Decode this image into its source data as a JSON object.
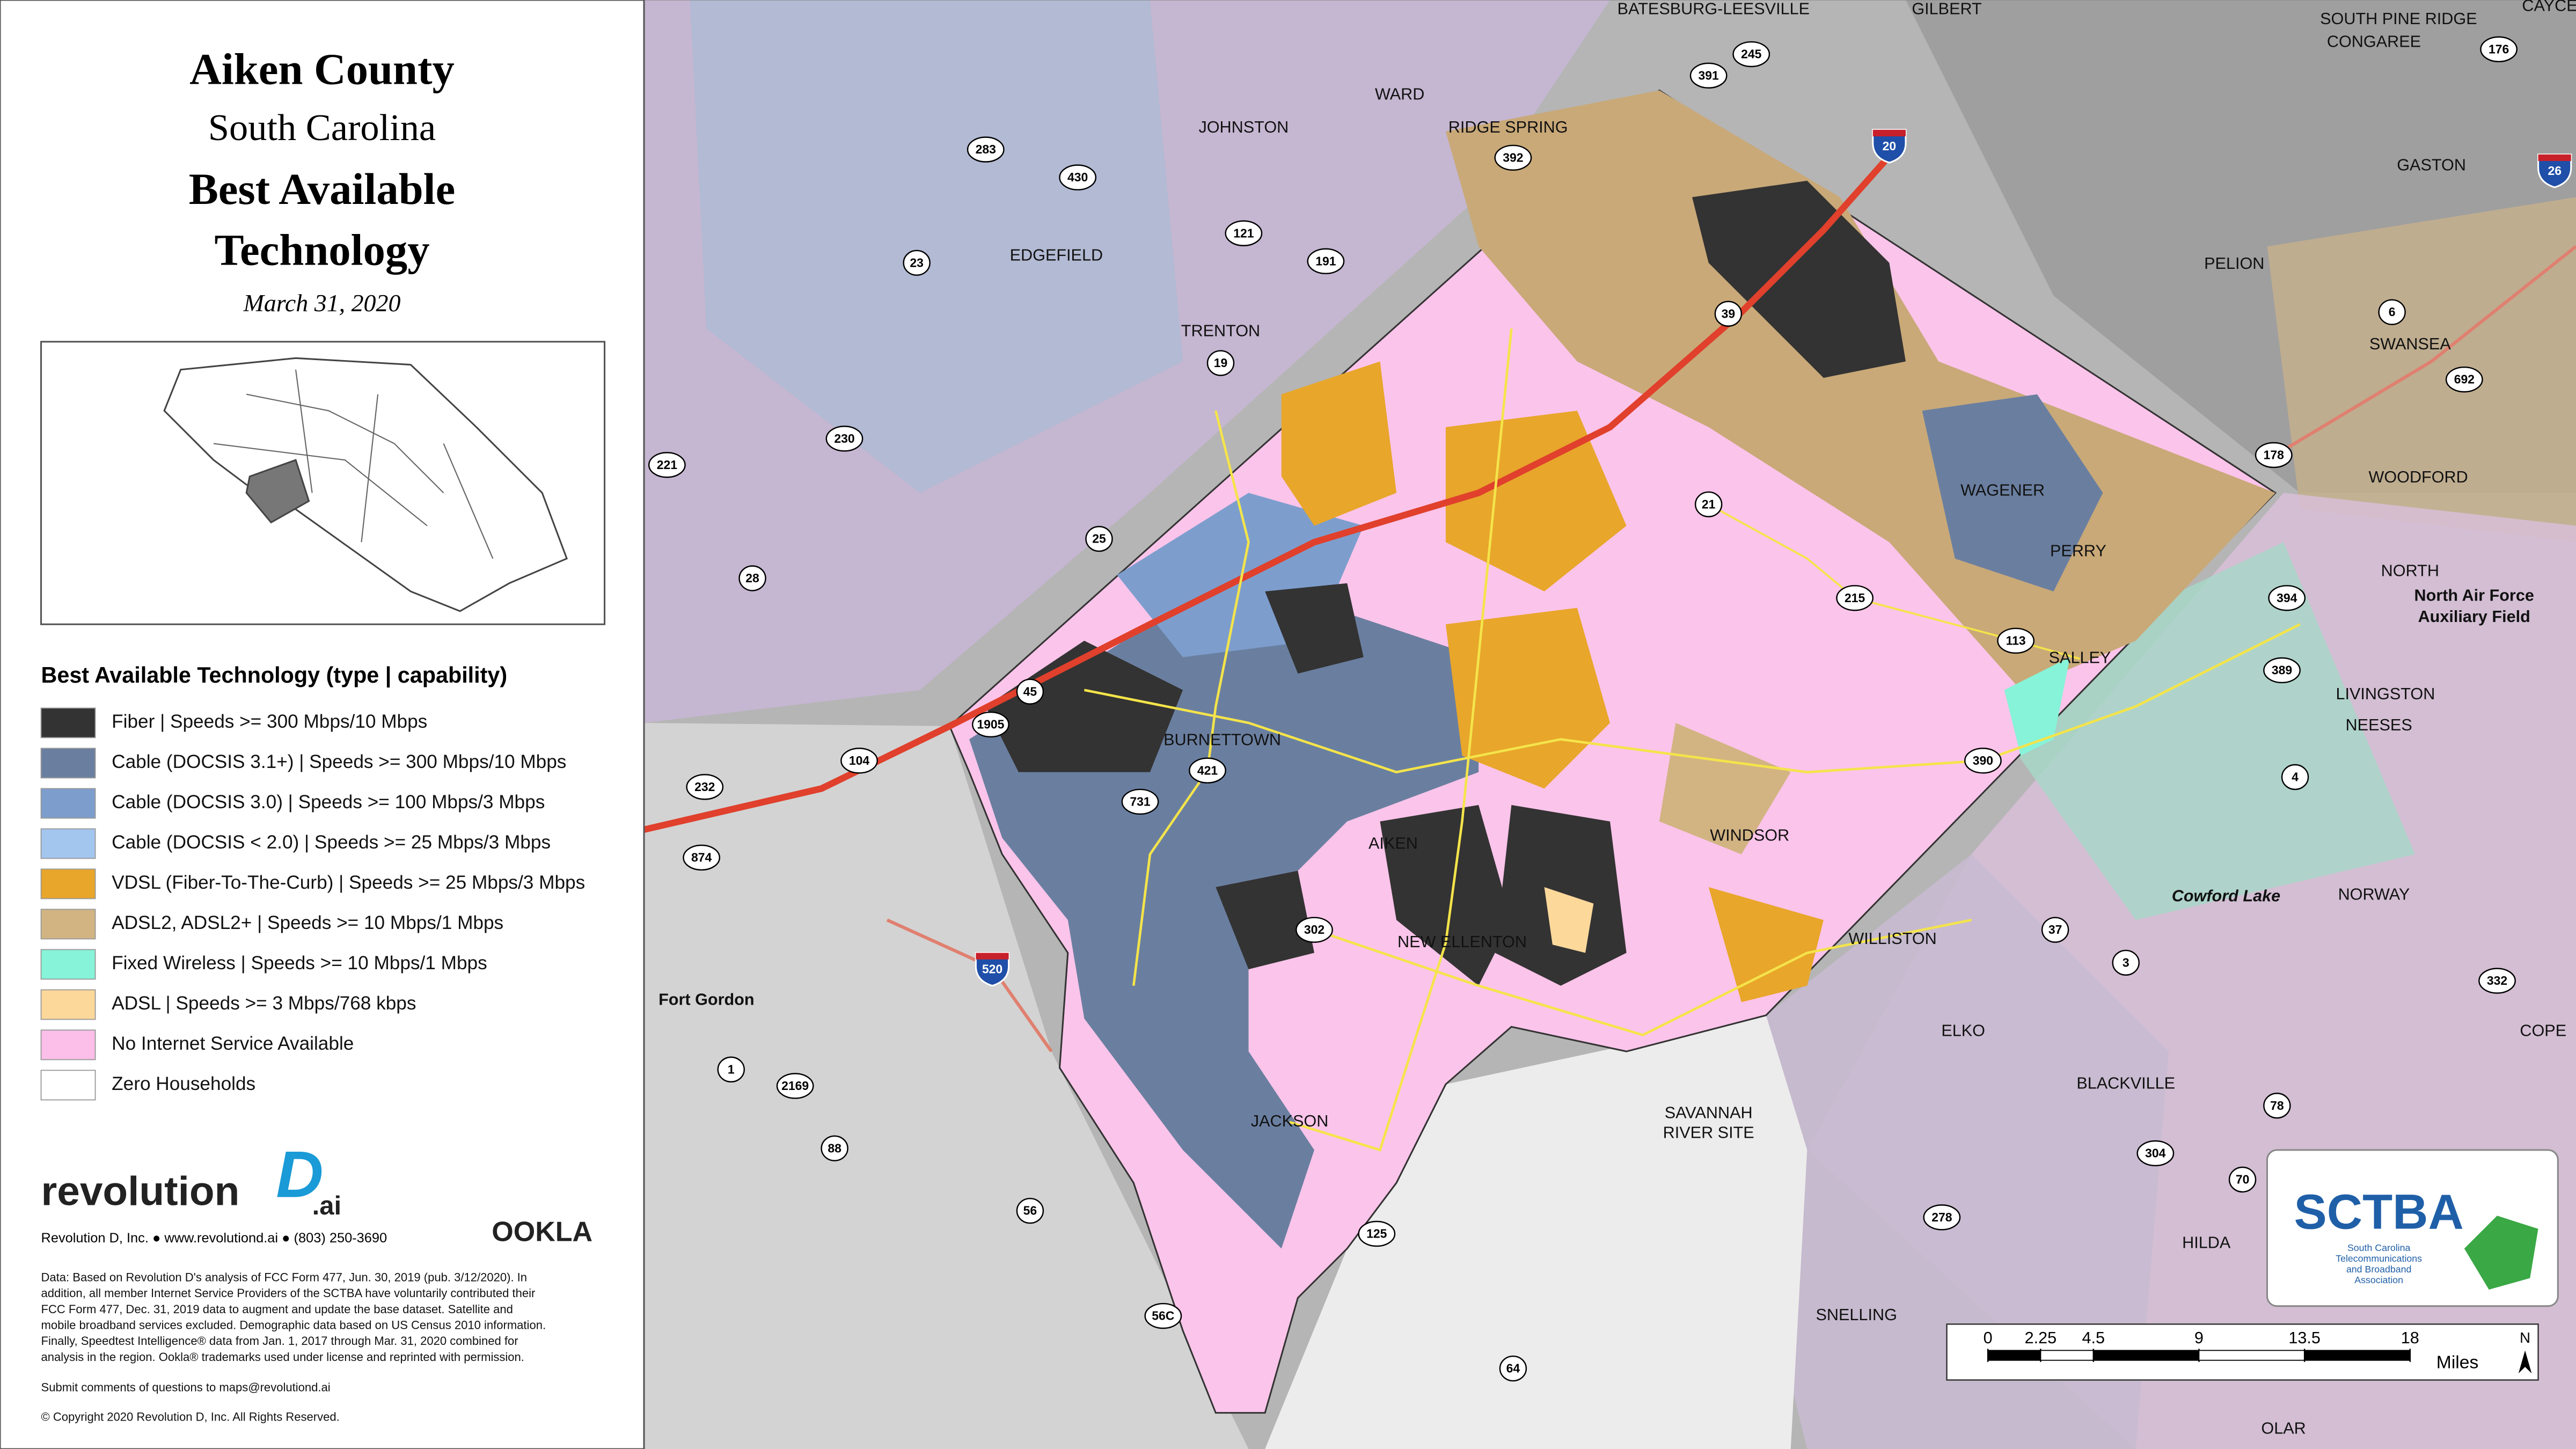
{
  "panel": {
    "title": "Aiken County",
    "subtitle": "South Carolina",
    "heading": [
      "Best Available",
      "Technology"
    ],
    "date": "March 31, 2020"
  },
  "legend": {
    "title": "Best Available Technology (type | capability)",
    "items": [
      {
        "label": "Fiber | Speeds >= 300 Mbps/10 Mbps",
        "color": "#333333"
      },
      {
        "label": "Cable (DOCSIS 3.1+) | Speeds >= 300 Mbps/10 Mbps",
        "color": "#6a7fa0"
      },
      {
        "label": "Cable (DOCSIS 3.0) | Speeds >= 100 Mbps/3 Mbps",
        "color": "#7d9ecd"
      },
      {
        "label": "Cable (DOCSIS < 2.0) | Speeds >= 25 Mbps/3 Mbps",
        "color": "#a3c6ef"
      },
      {
        "label": "VDSL (Fiber-To-The-Curb) | Speeds >= 25 Mbps/3 Mbps",
        "color": "#e8a62b"
      },
      {
        "label": "ADSL2, ADSL2+ | Speeds >= 10 Mbps/1 Mbps",
        "color": "#d2b483"
      },
      {
        "label": "Fixed Wireless | Speeds >= 10 Mbps/1 Mbps",
        "color": "#87f3d8"
      },
      {
        "label": "ADSL | Speeds >= 3 Mbps/768 kbps",
        "color": "#fdd89b"
      },
      {
        "label": "No Internet Service Available",
        "color": "#fbbfe9"
      },
      {
        "label": "Zero Households",
        "color": "#ffffff"
      }
    ]
  },
  "brand": {
    "name": "revolution",
    "mark": "D",
    "suffix": ".ai",
    "contact": "Revolution D, Inc. ● www.revolutiond.ai ● (803) 250-3690",
    "partner": "OOKLA"
  },
  "notes": [
    "Data: Based on Revolution D's analysis of FCC Form 477, Jun. 30, 2019 (pub. 3/12/2020). In",
    "addition, all member Internet Service Providers of the SCTBA have voluntarily contributed their",
    "FCC Form 477, Dec. 31, 2019 data to augment and update the base dataset. Satellite and",
    "mobile broadband services excluded. Demographic data based on US Census 2010 information.",
    "Finally, Speedtest Intelligence® data from Jan. 1, 2017 through Mar. 31, 2020 combined for",
    "analysis in the region. Ookla® trademarks used under license and reprinted with permission."
  ],
  "submit": "Submit comments of questions to maps@revolutiond.ai",
  "copyright": "© Copyright 2020 Revolution D, Inc. All Rights Reserved.",
  "places": [
    "BATESBURG-LEESVILLE",
    "GILBERT",
    "SOUTH PINE RIDGE",
    "CONGAREE",
    "CAYCE",
    "WARD",
    "JOHNSTON",
    "RIDGE SPRING",
    "GASTON",
    "EDGEFIELD",
    "PELION",
    "TRENTON",
    "SWANSEA",
    "WOODFORD",
    "WAGENER",
    "PERRY",
    "NORTH",
    "North Air Force",
    "Auxiliary Field",
    "SALLEY",
    "LIVINGSTON",
    "NEESES",
    "BURNETTOWN",
    "WINDSOR",
    "AIKEN",
    "NORWAY",
    "NEW ELLENTON",
    "WILLISTON",
    "Fort Gordon",
    "ELKO",
    "BLACKVILLE",
    "JACKSON",
    "SAVANNAH",
    "RIVER SITE",
    "HILDA",
    "SNELLING",
    "OLAR",
    "COPE",
    "Cowford Lake"
  ],
  "highways": [
    "391",
    "245",
    "283",
    "430",
    "392",
    "121",
    "191",
    "23",
    "39",
    "19",
    "6",
    "692",
    "230",
    "221",
    "178",
    "25",
    "28",
    "21",
    "215",
    "394",
    "113",
    "389",
    "45",
    "1905",
    "421",
    "104",
    "731",
    "390",
    "232",
    "4",
    "874",
    "37",
    "3",
    "302",
    "332",
    "1",
    "2169",
    "78",
    "88",
    "304",
    "70",
    "278",
    "56",
    "125",
    "56C",
    "64",
    "176"
  ],
  "interstates": [
    "20",
    "26",
    "520"
  ],
  "scale": {
    "ticks": [
      0,
      2.25,
      4.5,
      9,
      13.5,
      18
    ],
    "xlim": [
      0,
      18
    ],
    "unit": "Miles",
    "north": "N"
  },
  "sctba": {
    "name": "SCTBA",
    "tagline": [
      "South Carolina",
      "Telecommunications",
      "and Broadband",
      "Association"
    ]
  }
}
